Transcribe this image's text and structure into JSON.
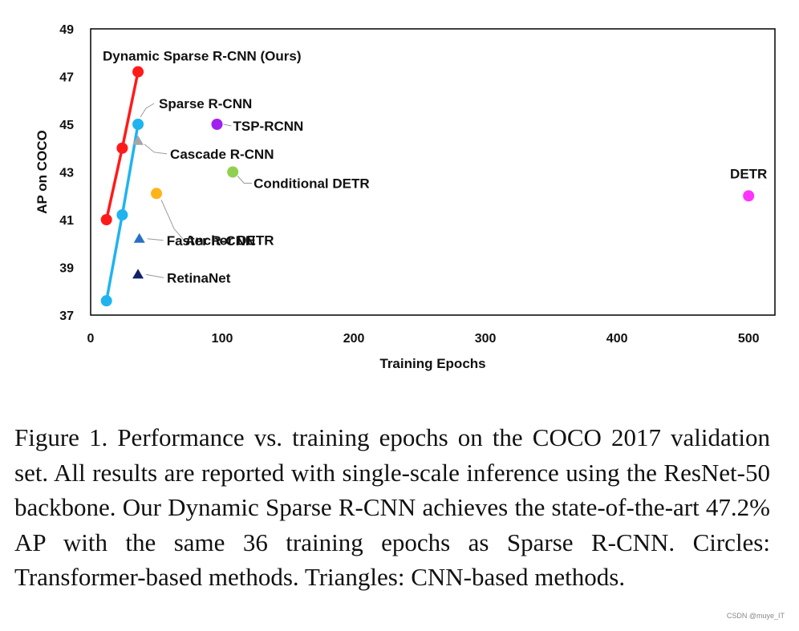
{
  "chart_data": {
    "type": "scatter",
    "xlabel": "Training Epochs",
    "ylabel": "AP on COCO",
    "xlim": [
      0,
      520
    ],
    "ylim": [
      37,
      49
    ],
    "xticks": [
      "0",
      "100",
      "200",
      "300",
      "400",
      "500"
    ],
    "yticks": [
      "37",
      "39",
      "41",
      "43",
      "45",
      "47",
      "49"
    ],
    "grid": false,
    "lines": [
      {
        "name": "Dynamic Sparse R-CNN (Ours)",
        "color": "#ff1a1a",
        "points": [
          [
            12,
            41.0
          ],
          [
            24,
            44.0
          ],
          [
            36,
            47.2
          ]
        ]
      },
      {
        "name": "Sparse R-CNN",
        "color": "#1fb4ef",
        "points": [
          [
            12,
            37.6
          ],
          [
            24,
            41.2
          ],
          [
            36,
            45.0
          ]
        ]
      }
    ],
    "points": [
      {
        "name": "TSP-RCNN",
        "x": 96,
        "y": 45.0,
        "marker": "circle",
        "color": "#a020f0"
      },
      {
        "name": "Conditional DETR",
        "x": 108,
        "y": 43.0,
        "marker": "circle",
        "color": "#8fd14f"
      },
      {
        "name": "Anchor DETR",
        "x": 50,
        "y": 42.1,
        "marker": "circle",
        "color": "#ffb31a"
      },
      {
        "name": "DETR",
        "x": 500,
        "y": 42.0,
        "marker": "circle",
        "color": "#ff33ff"
      },
      {
        "name": "Cascade R-CNN",
        "x": 36,
        "y": 44.3,
        "marker": "triangle",
        "color": "#a6a6a6"
      },
      {
        "name": "Faster R-CNN",
        "x": 37,
        "y": 40.2,
        "marker": "triangle",
        "color": "#2a6fc7"
      },
      {
        "name": "RetinaNet",
        "x": 36,
        "y": 38.7,
        "marker": "triangle",
        "color": "#13216b"
      }
    ]
  },
  "caption": "Figure 1. Performance vs. training epochs on the COCO 2017 validation set. All results are reported with single-scale inference using the ResNet-50 backbone. Our Dynamic Sparse R-CNN achieves the state-of-the-art 47.2% AP with the same 36 training epochs as Sparse R-CNN. Circles: Transformer-based methods. Triangles: CNN-based methods.",
  "watermark": "CSDN @muye_IT"
}
